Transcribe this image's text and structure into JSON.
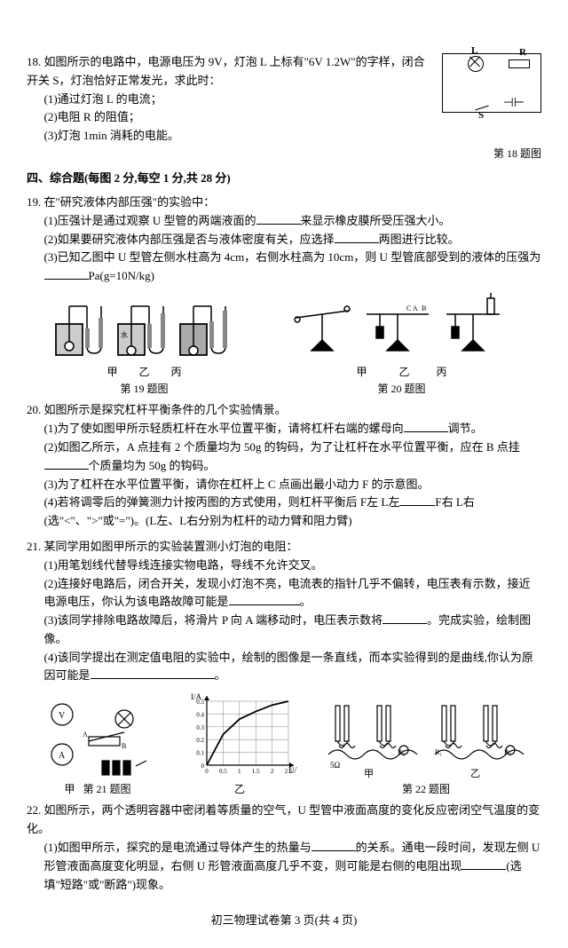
{
  "q18": {
    "num": "18.",
    "stem": "如图所示的电路中，电源电压为 9V，灯泡 L 上标有\"6V 1.2W\"的字样，闭合开关 S，灯泡恰好正常发光，求此时：",
    "p1": "(1)通过灯泡 L 的电流；",
    "p2": "(2)电阻 R 的阻值；",
    "p3": "(3)灯泡 1min 消耗的电能。",
    "fig": "第 18 题图",
    "circ_L": "L",
    "circ_R": "R",
    "circ_S": "S"
  },
  "section4": "四、综合题(每图 2 分,每空 1 分,共 28 分)",
  "q19": {
    "num": "19.",
    "stem": "在\"研究液体内部压强\"的实验中：",
    "p1a": "(1)压强计是通过观察 U 型管的两端液面的",
    "p1b": "来显示橡皮膜所受压强大小。",
    "p2a": "(2)如果要研究液体内部压强是否与液体密度有关，应选择",
    "p2b": "两图进行比较。",
    "p3a": "(3)已知乙图中 U 型管左侧水柱高为 4cm，右侧水柱高为 10cm，则 U 型管底部受到的液体的压强为",
    "p3b": "Pa(g=10N/kg)",
    "fig19": "第 19 题图",
    "fig20": "第 20 题图",
    "cap_jia": "甲",
    "cap_yi": "乙",
    "cap_bing": "丙"
  },
  "q20": {
    "num": "20.",
    "stem": "如图所示是探究杠杆平衡条件的几个实验情景。",
    "p1a": "(1)为了使如图甲所示轻质杠杆在水平位置平衡，请将杠杆右端的螺母向",
    "p1b": "调节。",
    "p2a": "(2)如图乙所示，A 点挂有 2 个质量均为 50g 的钩码，为了让杠杆在水平位置平衡，应在 B 点挂",
    "p2b": "个质量均为 50g 的钩码。",
    "p3": "(3)为了杠杆在水平位置平衡，请你在杠杆上 C 点画出最小动力 F 的示意图。",
    "p4a": "(4)若将调零后的弹簧测力计按丙图的方式使用，则杠杆平衡后 F左 L左",
    "p4b": "F右 L右",
    "p4c": "(选\"<\"、\">\"或\"=\")。(L左、L右分别为杠杆的动力臂和阻力臂)"
  },
  "q21": {
    "num": "21.",
    "stem": "某同学用如图甲所示的实验装置测小灯泡的电阻：",
    "p1": "(1)用笔划线代替导线连接实物电路，导线不允许交叉。",
    "p2a": "(2)连接好电路后，闭合开关，发现小灯泡不亮，电流表的指针几乎不偏转，电压表有示数，接近电源电压，你认为该电路故障可能是",
    "p2b": "。",
    "p3a": "(3)该同学排除电路故障后，将滑片 P 向 A 端移动时，电压表示数将",
    "p3b": "。完成实验，绘制图像。",
    "p4a": "(4)该同学提出在测定值电阻的实验中，绘制的图像是一条直线，而本实验得到的是曲线,你认为原因可能是",
    "p4b": "。",
    "fig21": "第 21 题图",
    "fig22": "第 22 题图",
    "chart": {
      "xlabel": "U/V",
      "ylabel": "I/A",
      "xticks": [
        0,
        0.5,
        1.0,
        1.5,
        2.0,
        2.5
      ],
      "yticks": [
        0,
        0.1,
        0.2,
        0.3,
        0.4,
        0.5
      ],
      "points": [
        [
          0,
          0
        ],
        [
          0.5,
          0.24
        ],
        [
          1.0,
          0.36
        ],
        [
          1.5,
          0.42
        ],
        [
          2.0,
          0.47
        ],
        [
          2.5,
          0.5
        ]
      ],
      "line_color": "#000",
      "grid_color": "#666",
      "bg": "#fff"
    }
  },
  "q22": {
    "num": "22.",
    "stem": "如图所示，两个透明容器中密闭着等质量的空气，U 型管中液面高度的变化反应密闭空气温度的变化。",
    "p1a": "(1)如图甲所示，探究的是电流通过导体产生的热量与",
    "p1b": "的关系。通电一段时间，发现左侧 U 形管液面高度变化明显，右侧 U 形管液面高度几乎不变，则可能是右侧的电阻出现",
    "p1c": "(选填\"短路\"或\"断路\")现象。"
  },
  "footer": "初三物理试卷第 3 页(共 4 页)"
}
